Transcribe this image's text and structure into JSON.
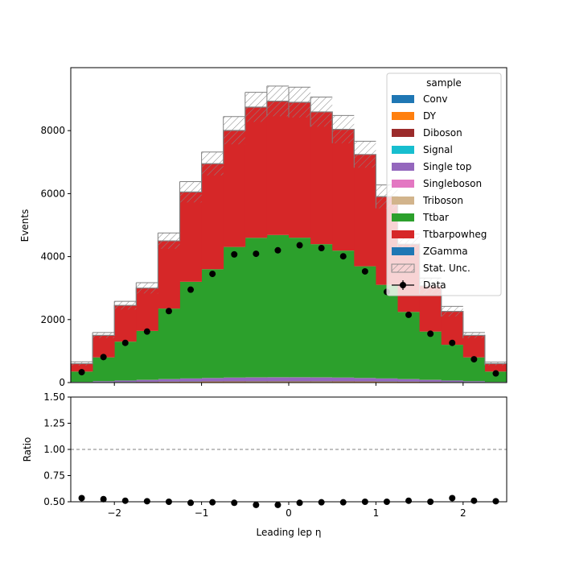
{
  "chart_data": {
    "type": "bar",
    "stacked": true,
    "xlabel": "Leading lep η",
    "ylabel": "Events",
    "xlim": [
      -2.5,
      2.5
    ],
    "ylim": [
      0,
      10000
    ],
    "bin_edges": [
      -2.5,
      -2.25,
      -2.0,
      -1.75,
      -1.5,
      -1.25,
      -1.0,
      -0.75,
      -0.5,
      -0.25,
      0.0,
      0.25,
      0.5,
      0.75,
      1.0,
      1.25,
      1.5,
      1.75,
      2.0,
      2.25,
      2.5
    ],
    "x_ticks": [
      -2,
      -1,
      0,
      1,
      2
    ],
    "x_tick_labels": [
      "−2",
      "−1",
      "0",
      "1",
      "2"
    ],
    "y_ticks": [
      0,
      2000,
      4000,
      6000,
      8000
    ],
    "y_tick_labels": [
      "0",
      "2000",
      "4000",
      "6000",
      "8000"
    ],
    "legend": {
      "title": "sample",
      "position": "top-right",
      "stat_label": "Stat. Unc.",
      "data_label": "Data"
    },
    "series": [
      {
        "name": "Conv",
        "color": "#1f77b4",
        "values": [
          3,
          6,
          9,
          11,
          13,
          15,
          16,
          17,
          18,
          18,
          18,
          18,
          17,
          16,
          15,
          13,
          11,
          9,
          6,
          3
        ]
      },
      {
        "name": "DY",
        "color": "#ff7f0e",
        "values": [
          2,
          4,
          5,
          6,
          8,
          9,
          10,
          11,
          11,
          11,
          11,
          11,
          11,
          10,
          9,
          8,
          6,
          5,
          4,
          2
        ]
      },
      {
        "name": "Diboson",
        "color": "#9b2b2b",
        "values": [
          2,
          4,
          5,
          7,
          8,
          9,
          10,
          11,
          12,
          12,
          12,
          12,
          11,
          10,
          9,
          8,
          7,
          5,
          4,
          2
        ]
      },
      {
        "name": "Signal",
        "color": "#17becf",
        "values": [
          1,
          2,
          3,
          4,
          5,
          6,
          6,
          7,
          7,
          7,
          7,
          7,
          7,
          6,
          6,
          5,
          4,
          3,
          2,
          1
        ]
      },
      {
        "name": "Single top",
        "color": "#9467bd",
        "values": [
          12,
          26,
          42,
          55,
          72,
          88,
          98,
          108,
          112,
          115,
          115,
          112,
          108,
          98,
          88,
          72,
          55,
          42,
          26,
          12
        ]
      },
      {
        "name": "Singleboson",
        "color": "#e377c2",
        "values": [
          1,
          2,
          2,
          3,
          4,
          4,
          5,
          5,
          5,
          5,
          5,
          5,
          5,
          5,
          4,
          4,
          3,
          2,
          2,
          1
        ]
      },
      {
        "name": "Triboson",
        "color": "#d2b48c",
        "values": [
          0,
          0,
          0,
          0,
          0,
          0,
          0,
          0,
          0,
          0,
          0,
          0,
          0,
          0,
          0,
          0,
          0,
          0,
          0,
          0
        ]
      },
      {
        "name": "Ttbar",
        "color": "#2ca02c",
        "values": [
          329,
          756,
          1234,
          1554,
          2240,
          3070,
          3455,
          4147,
          4431,
          4518,
          4432,
          4230,
          4031,
          3548,
          2973,
          2134,
          1534,
          1134,
          756,
          329
        ]
      },
      {
        "name": "Ttbarpowheg",
        "color": "#d62728",
        "values": [
          250,
          700,
          1150,
          1360,
          2150,
          2850,
          3350,
          3700,
          4150,
          4250,
          4300,
          4200,
          3850,
          3550,
          2800,
          2150,
          1450,
          1060,
          700,
          250
        ]
      },
      {
        "name": "ZGamma",
        "color": "#1f77b4",
        "values": [
          0,
          0,
          0,
          0,
          0,
          0,
          0,
          0,
          0,
          0,
          0,
          0,
          0,
          0,
          0,
          0,
          0,
          0,
          0,
          0
        ]
      }
    ],
    "stat_unc": [
      60,
      90,
      130,
      170,
      250,
      330,
      370,
      440,
      470,
      480,
      480,
      470,
      440,
      420,
      370,
      320,
      250,
      160,
      90,
      50
    ],
    "data_points": [
      330,
      810,
      1260,
      1620,
      2270,
      2950,
      3450,
      4070,
      4090,
      4200,
      4360,
      4270,
      4010,
      3530,
      2880,
      2150,
      1550,
      1260,
      740,
      290
    ],
    "ratio": {
      "ylabel": "Ratio",
      "ylim": [
        0.5,
        1.5
      ],
      "y_ticks": [
        0.5,
        0.75,
        1.0,
        1.25,
        1.5
      ],
      "y_tick_labels": [
        "0.50",
        "0.75",
        "1.00",
        "1.25",
        "1.50"
      ],
      "reference": 1.0,
      "values": [
        0.535,
        0.525,
        0.51,
        0.505,
        0.5,
        0.49,
        0.495,
        0.49,
        0.47,
        0.47,
        0.49,
        0.495,
        0.495,
        0.5,
        0.5,
        0.51,
        0.5,
        0.535,
        0.51,
        0.505
      ]
    }
  }
}
